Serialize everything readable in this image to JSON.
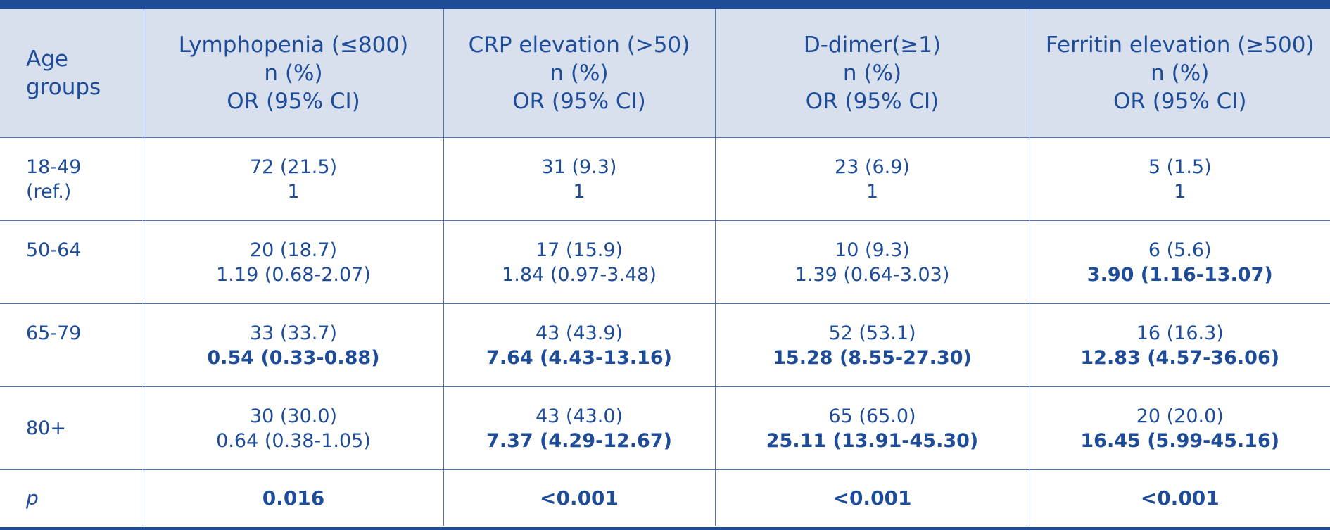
{
  "header": {
    "age_groups": [
      "Age",
      "groups"
    ],
    "columns": [
      {
        "title": "Lymphopenia (≤800)",
        "line2": "n (%)",
        "line3": "OR (95% CI)"
      },
      {
        "title": "CRP elevation (>50)",
        "line2": "n (%)",
        "line3": "OR (95% CI)"
      },
      {
        "title": "D-dimer(≥1)",
        "line2": "n (%)",
        "line3": "OR (95% CI)"
      },
      {
        "title": "Ferritin elevation (≥500)",
        "line2": "n (%)",
        "line3": "OR (95% CI)"
      }
    ]
  },
  "rows": [
    {
      "age": [
        "18-49",
        "(ref.)"
      ],
      "cells": [
        {
          "n": "72 (21.5)",
          "or": "1",
          "or_bold": false
        },
        {
          "n": "31 (9.3)",
          "or": "1",
          "or_bold": false
        },
        {
          "n": "23 (6.9)",
          "or": "1",
          "or_bold": false
        },
        {
          "n": "5 (1.5)",
          "or": "1",
          "or_bold": false
        }
      ]
    },
    {
      "age": [
        "50-64"
      ],
      "cells": [
        {
          "n": "20 (18.7)",
          "or": "1.19 (0.68-2.07)",
          "or_bold": false
        },
        {
          "n": "17 (15.9)",
          "or": "1.84 (0.97-3.48)",
          "or_bold": false
        },
        {
          "n": "10 (9.3)",
          "or": "1.39 (0.64-3.03)",
          "or_bold": false
        },
        {
          "n": "6 (5.6)",
          "or": "3.90 (1.16-13.07)",
          "or_bold": true
        }
      ]
    },
    {
      "age": [
        "65-79"
      ],
      "cells": [
        {
          "n": "33 (33.7)",
          "or": "0.54 (0.33-0.88)",
          "or_bold": true
        },
        {
          "n": "43 (43.9)",
          "or": "7.64 (4.43-13.16)",
          "or_bold": true
        },
        {
          "n": "52 (53.1)",
          "or": "15.28 (8.55-27.30)",
          "or_bold": true
        },
        {
          "n": "16 (16.3)",
          "or": "12.83 (4.57-36.06)",
          "or_bold": true
        }
      ]
    },
    {
      "age": [
        "80+"
      ],
      "cells": [
        {
          "n": "30 (30.0)",
          "or": "0.64 (0.38-1.05)",
          "or_bold": false
        },
        {
          "n": "43 (43.0)",
          "or": "7.37 (4.29-12.67)",
          "or_bold": true
        },
        {
          "n": "65 (65.0)",
          "or": "25.11 (13.91-45.30)",
          "or_bold": true
        },
        {
          "n": "20 (20.0)",
          "or": "16.45 (5.99-45.16)",
          "or_bold": true
        }
      ]
    }
  ],
  "p_row": {
    "label": "p",
    "values": [
      "0.016",
      "<0.001",
      "<0.001",
      "<0.001"
    ]
  },
  "colors": {
    "text": "#1e4c99",
    "header_bg": "#d8e0ed",
    "rule": "#1e4c99",
    "grid": "#4d72b5"
  }
}
